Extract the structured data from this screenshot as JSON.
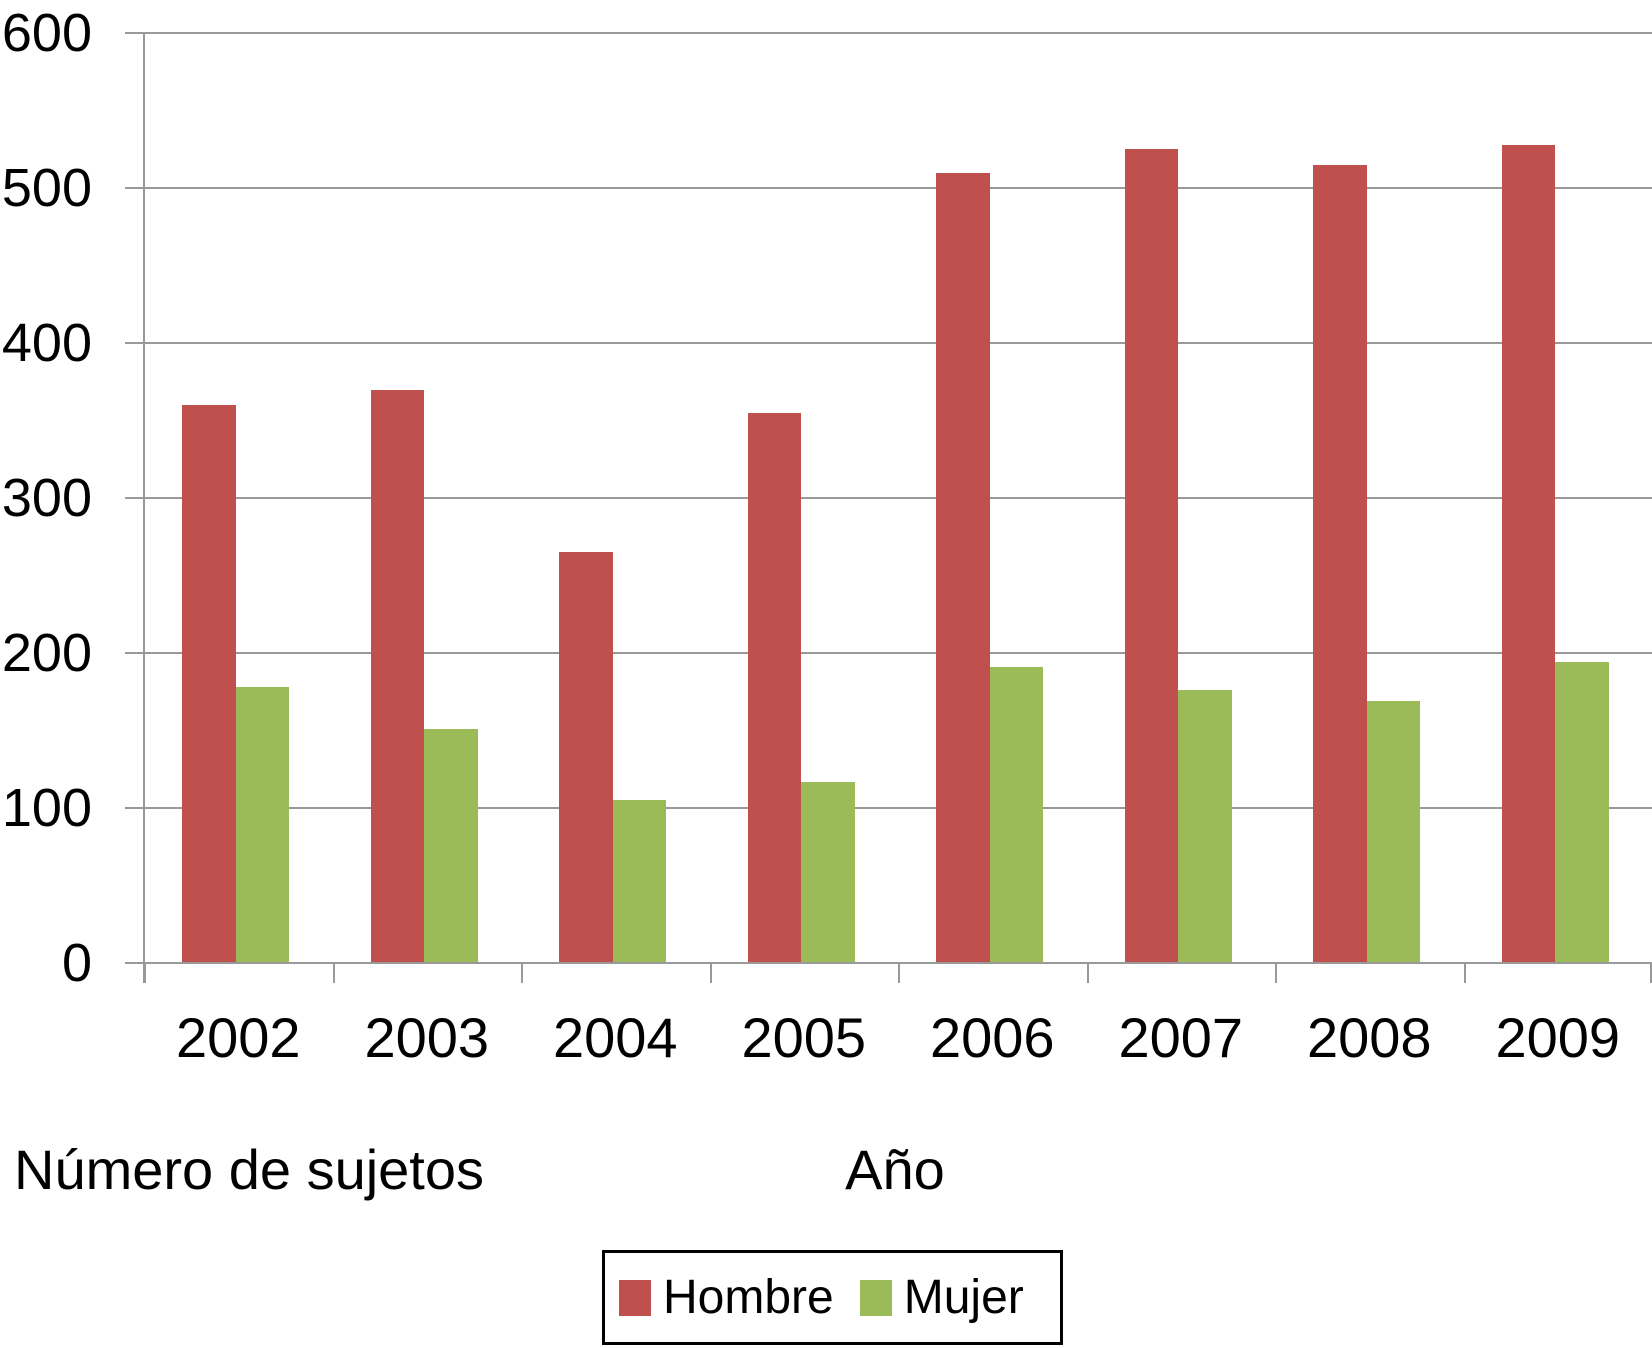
{
  "chart_data": {
    "type": "bar",
    "title": "",
    "categories": [
      "2002",
      "2003",
      "2004",
      "2005",
      "2006",
      "2007",
      "2008",
      "2009"
    ],
    "series": [
      {
        "name": "Hombre",
        "color": "#c0504d",
        "values": [
          360,
          370,
          265,
          355,
          510,
          525,
          515,
          528
        ]
      },
      {
        "name": "Mujer",
        "color": "#9bbb59",
        "values": [
          178,
          151,
          105,
          117,
          191,
          176,
          169,
          194
        ]
      }
    ],
    "ylabel": "Número de sujetos",
    "xlabel": "Año",
    "ylim": [
      0,
      600
    ],
    "ytick_interval": 100,
    "ytick_labels": [
      "0",
      "100",
      "200",
      "300",
      "400",
      "500",
      "600"
    ],
    "grid": true,
    "legend_position": "bottom",
    "colors": {
      "gridline": "#999999",
      "axis": "#999999",
      "text": "#000000",
      "background": "#ffffff"
    }
  }
}
